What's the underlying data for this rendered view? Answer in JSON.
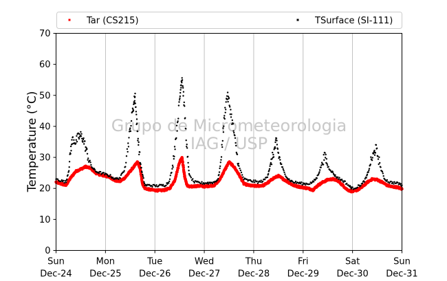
{
  "chart_data": {
    "type": "scatter",
    "ylabel": "Temperature (°C)",
    "ylim": [
      0,
      70
    ],
    "yticks": [
      0,
      10,
      20,
      30,
      40,
      50,
      60,
      70
    ],
    "xlim": [
      "2017-12-24",
      "2017-12-31"
    ],
    "x_tick_labels": [
      {
        "day": "Sun",
        "date": "Dec-24"
      },
      {
        "day": "Mon",
        "date": "Dec-25"
      },
      {
        "day": "Tue",
        "date": "Dec-26"
      },
      {
        "day": "Wed",
        "date": "Dec-27"
      },
      {
        "day": "Thu",
        "date": "Dec-28"
      },
      {
        "day": "Fri",
        "date": "Dec-29"
      },
      {
        "day": "Sat",
        "date": "Dec-30"
      },
      {
        "day": "Sun",
        "date": "Dec-31"
      }
    ],
    "grid": "vertical",
    "legend": "top",
    "watermark": [
      "Grupo de Micrometeorologia",
      "IAG / USP"
    ],
    "series": [
      {
        "name": "Tar (CS215)",
        "color": "#ff0000",
        "x_unit": "days",
        "points": [
          [
            0.0,
            22.0
          ],
          [
            0.1,
            21.5
          ],
          [
            0.2,
            21.0
          ],
          [
            0.3,
            23.5
          ],
          [
            0.4,
            25.5
          ],
          [
            0.5,
            26.2
          ],
          [
            0.6,
            27.0
          ],
          [
            0.7,
            26.5
          ],
          [
            0.8,
            25.0
          ],
          [
            0.9,
            24.3
          ],
          [
            1.0,
            24.0
          ],
          [
            1.1,
            23.5
          ],
          [
            1.2,
            22.5
          ],
          [
            1.3,
            22.3
          ],
          [
            1.4,
            23.5
          ],
          [
            1.5,
            25.5
          ],
          [
            1.6,
            27.5
          ],
          [
            1.65,
            28.5
          ],
          [
            1.7,
            26.5
          ],
          [
            1.75,
            21.5
          ],
          [
            1.8,
            20.0
          ],
          [
            1.9,
            19.6
          ],
          [
            2.0,
            19.4
          ],
          [
            2.1,
            19.3
          ],
          [
            2.2,
            19.5
          ],
          [
            2.3,
            20.0
          ],
          [
            2.4,
            22.5
          ],
          [
            2.5,
            28.5
          ],
          [
            2.55,
            30.0
          ],
          [
            2.6,
            24.0
          ],
          [
            2.65,
            21.0
          ],
          [
            2.7,
            20.5
          ],
          [
            2.8,
            20.7
          ],
          [
            2.9,
            20.8
          ],
          [
            3.0,
            20.6
          ],
          [
            3.1,
            20.8
          ],
          [
            3.2,
            21.0
          ],
          [
            3.3,
            22.5
          ],
          [
            3.4,
            25.5
          ],
          [
            3.5,
            28.5
          ],
          [
            3.6,
            27.0
          ],
          [
            3.7,
            24.5
          ],
          [
            3.8,
            21.5
          ],
          [
            3.9,
            21.0
          ],
          [
            4.0,
            20.8
          ],
          [
            4.1,
            20.8
          ],
          [
            4.2,
            21.0
          ],
          [
            4.3,
            22.0
          ],
          [
            4.4,
            23.3
          ],
          [
            4.5,
            24.0
          ],
          [
            4.6,
            23.0
          ],
          [
            4.7,
            22.0
          ],
          [
            4.8,
            21.0
          ],
          [
            4.9,
            20.6
          ],
          [
            5.0,
            20.3
          ],
          [
            5.1,
            20.0
          ],
          [
            5.2,
            19.5
          ],
          [
            5.3,
            21.0
          ],
          [
            5.4,
            22.0
          ],
          [
            5.5,
            22.8
          ],
          [
            5.6,
            23.0
          ],
          [
            5.7,
            22.5
          ],
          [
            5.8,
            21.0
          ],
          [
            5.9,
            19.5
          ],
          [
            6.0,
            19.0
          ],
          [
            6.1,
            19.5
          ],
          [
            6.2,
            20.5
          ],
          [
            6.3,
            22.0
          ],
          [
            6.4,
            23.0
          ],
          [
            6.5,
            22.8
          ],
          [
            6.6,
            22.0
          ],
          [
            6.7,
            21.0
          ],
          [
            6.8,
            20.5
          ],
          [
            6.9,
            20.4
          ],
          [
            7.0,
            19.8
          ]
        ]
      },
      {
        "name": "TSurface (SI-111)",
        "color": "#000000",
        "x_unit": "days",
        "points": [
          [
            0.0,
            23.0
          ],
          [
            0.1,
            22.5
          ],
          [
            0.2,
            22.0
          ],
          [
            0.26,
            26.0
          ],
          [
            0.3,
            33.0
          ],
          [
            0.34,
            36.0
          ],
          [
            0.4,
            35.0
          ],
          [
            0.45,
            36.5
          ],
          [
            0.5,
            37.0
          ],
          [
            0.55,
            36.0
          ],
          [
            0.6,
            33.0
          ],
          [
            0.65,
            30.0
          ],
          [
            0.72,
            27.0
          ],
          [
            0.8,
            25.5
          ],
          [
            0.9,
            25.0
          ],
          [
            1.0,
            24.5
          ],
          [
            1.1,
            24.0
          ],
          [
            1.2,
            23.0
          ],
          [
            1.3,
            23.5
          ],
          [
            1.38,
            26.0
          ],
          [
            1.45,
            33.0
          ],
          [
            1.5,
            39.0
          ],
          [
            1.55,
            45.0
          ],
          [
            1.58,
            48.0
          ],
          [
            1.6,
            50.0
          ],
          [
            1.63,
            42.0
          ],
          [
            1.66,
            36.0
          ],
          [
            1.7,
            29.0
          ],
          [
            1.74,
            25.0
          ],
          [
            1.8,
            21.0
          ],
          [
            1.9,
            21.0
          ],
          [
            2.0,
            20.8
          ],
          [
            2.1,
            20.9
          ],
          [
            2.2,
            21.0
          ],
          [
            2.28,
            22.0
          ],
          [
            2.35,
            26.0
          ],
          [
            2.4,
            33.0
          ],
          [
            2.45,
            40.0
          ],
          [
            2.5,
            48.0
          ],
          [
            2.53,
            54.0
          ],
          [
            2.55,
            56.0
          ],
          [
            2.58,
            50.0
          ],
          [
            2.62,
            40.0
          ],
          [
            2.66,
            30.0
          ],
          [
            2.7,
            24.0
          ],
          [
            2.8,
            22.0
          ],
          [
            2.9,
            21.8
          ],
          [
            3.0,
            21.7
          ],
          [
            3.1,
            21.8
          ],
          [
            3.2,
            22.0
          ],
          [
            3.28,
            23.0
          ],
          [
            3.33,
            28.0
          ],
          [
            3.38,
            38.0
          ],
          [
            3.42,
            45.0
          ],
          [
            3.46,
            50.0
          ],
          [
            3.5,
            48.0
          ],
          [
            3.55,
            43.0
          ],
          [
            3.6,
            38.0
          ],
          [
            3.65,
            32.0
          ],
          [
            3.7,
            27.0
          ],
          [
            3.8,
            23.0
          ],
          [
            3.9,
            22.5
          ],
          [
            4.0,
            22.3
          ],
          [
            4.1,
            22.0
          ],
          [
            4.2,
            22.5
          ],
          [
            4.28,
            24.0
          ],
          [
            4.33,
            27.0
          ],
          [
            4.38,
            30.0
          ],
          [
            4.43,
            33.0
          ],
          [
            4.46,
            35.5
          ],
          [
            4.5,
            31.0
          ],
          [
            4.55,
            28.0
          ],
          [
            4.62,
            25.0
          ],
          [
            4.7,
            23.0
          ],
          [
            4.8,
            22.0
          ],
          [
            4.9,
            21.8
          ],
          [
            5.0,
            21.5
          ],
          [
            5.1,
            21.5
          ],
          [
            5.2,
            22.0
          ],
          [
            5.28,
            23.5
          ],
          [
            5.34,
            26.0
          ],
          [
            5.4,
            29.0
          ],
          [
            5.45,
            30.5
          ],
          [
            5.5,
            27.0
          ],
          [
            5.58,
            25.5
          ],
          [
            5.65,
            24.0
          ],
          [
            5.75,
            23.0
          ],
          [
            5.85,
            22.0
          ],
          [
            5.95,
            20.5
          ],
          [
            6.0,
            20.0
          ],
          [
            6.1,
            20.5
          ],
          [
            6.2,
            21.5
          ],
          [
            6.28,
            23.5
          ],
          [
            6.33,
            26.0
          ],
          [
            6.38,
            29.0
          ],
          [
            6.43,
            31.0
          ],
          [
            6.47,
            33.0
          ],
          [
            6.52,
            30.0
          ],
          [
            6.58,
            26.0
          ],
          [
            6.65,
            23.0
          ],
          [
            6.75,
            22.0
          ],
          [
            6.85,
            21.8
          ],
          [
            6.95,
            21.5
          ],
          [
            7.0,
            21.0
          ]
        ]
      }
    ]
  }
}
